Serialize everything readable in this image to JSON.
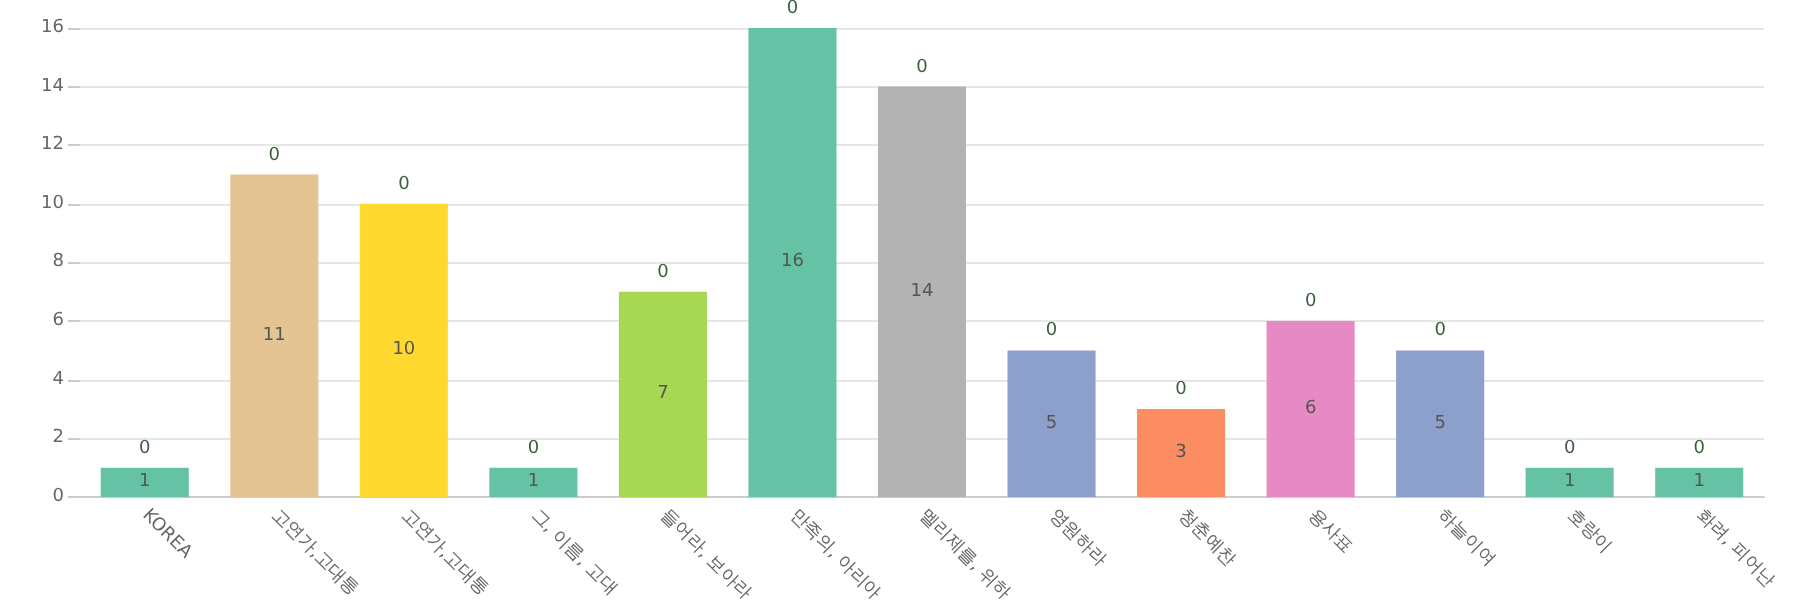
{
  "chart_data": {
    "type": "bar",
    "stacked": true,
    "categories": [
      "KOREA",
      "고연가,고대통",
      "고연가,고대통",
      "그, 이름, 고대",
      "들어라, 보아라",
      "만족의, 아리아",
      "멜리제를, 위하",
      "영원하라",
      "청춘예찬",
      "용사표",
      "하늘이여",
      "호랑이",
      "화려, 피어난"
    ],
    "series": [
      {
        "colors": [
          "#66c2a5",
          "#e5c494",
          "#ffd92f",
          "#66c2a5",
          "#a6d854",
          "#66c2a5",
          "#b3b3b3",
          "#8da0cb",
          "#fc8d62",
          "#e78ac3",
          "#8da0cb",
          "#66c2a5",
          "#66c2a5"
        ],
        "values": [
          1,
          11,
          10,
          1,
          7,
          16,
          14,
          5,
          3,
          6,
          5,
          1,
          1
        ]
      },
      {
        "color": "#3b5e3b",
        "values": [
          0,
          0,
          0,
          0,
          0,
          0,
          0,
          0,
          0,
          0,
          0,
          0,
          0
        ]
      }
    ],
    "ylim": [
      0,
      16
    ],
    "yticks": [
      0,
      2,
      4,
      6,
      8,
      10,
      12,
      14,
      16
    ],
    "grid": "y",
    "data_labels": true
  }
}
